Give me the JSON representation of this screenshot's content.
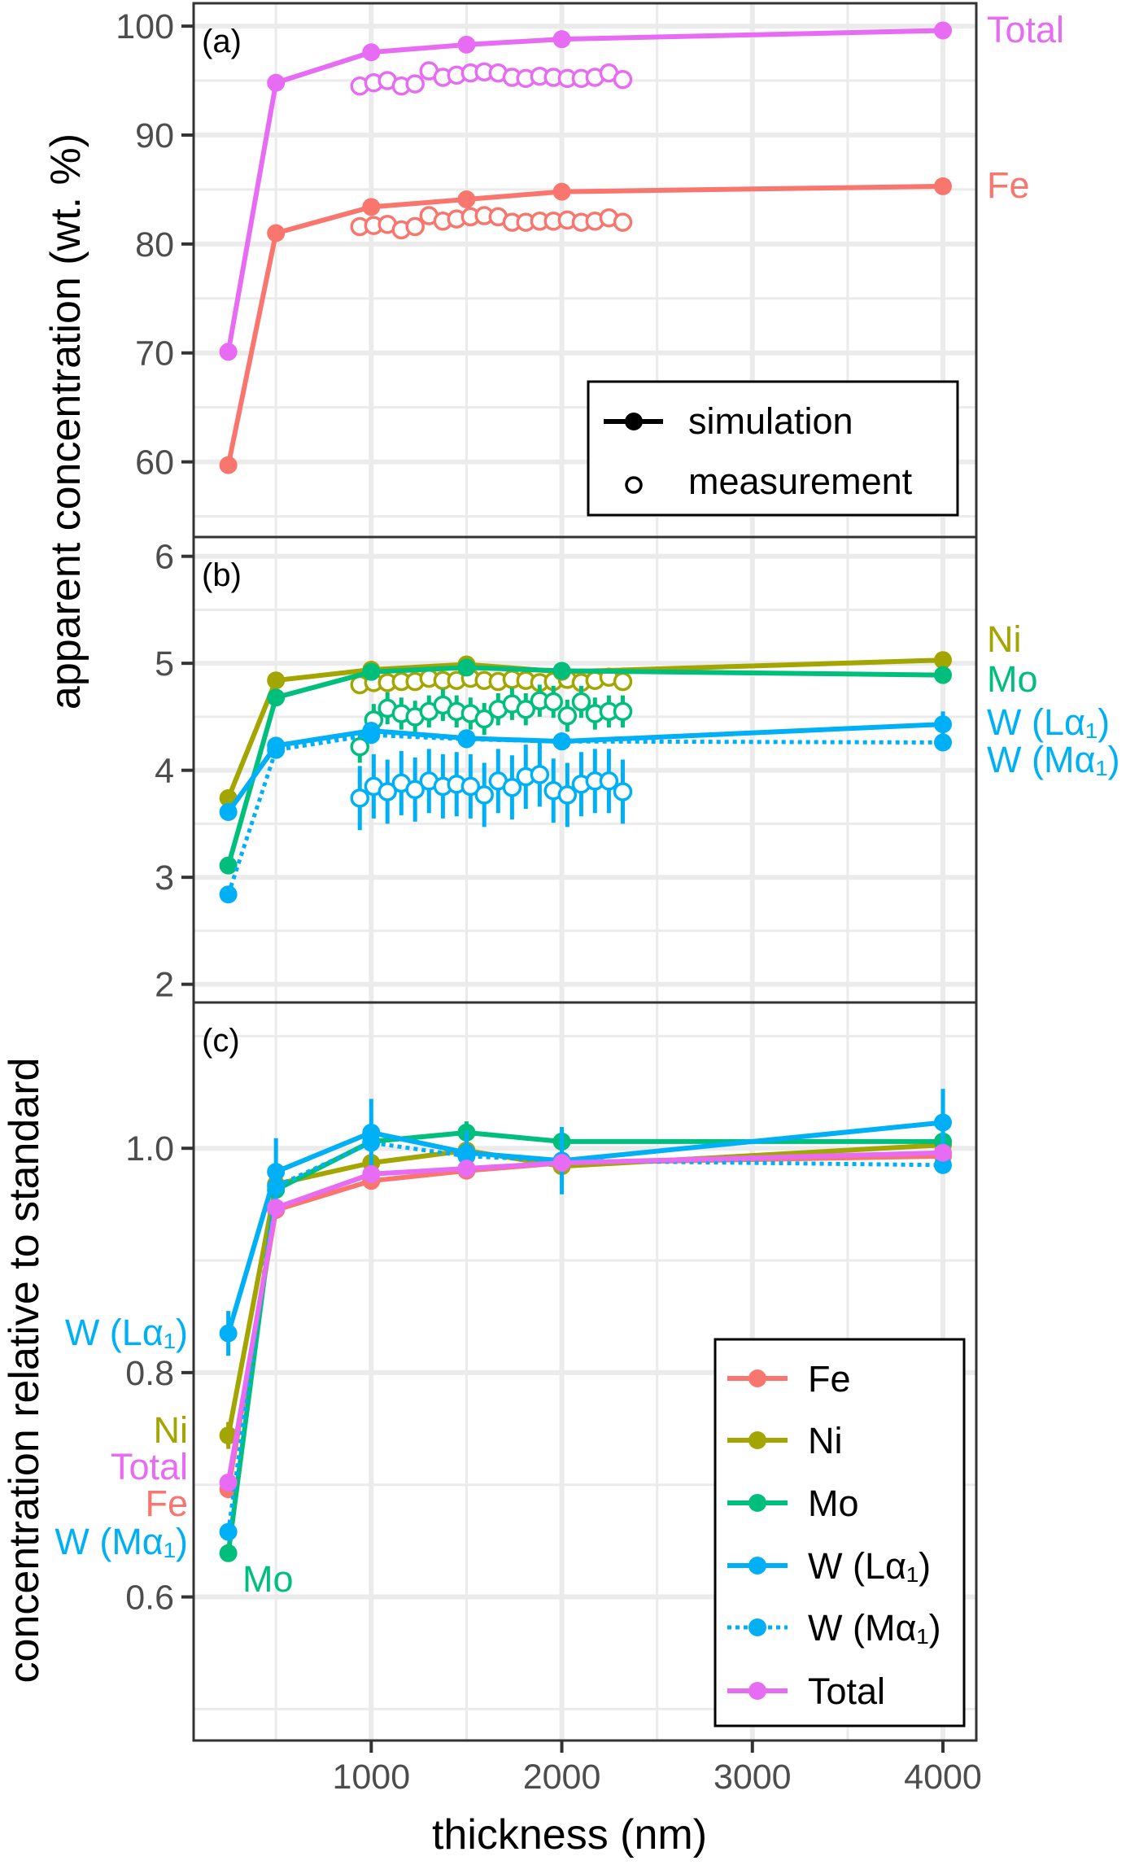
{
  "chart_data": [
    {
      "type": "line",
      "panel_label": "(a)",
      "ylabel": "apparent concentration (wt. %)",
      "xlim": [
        68,
        4175
      ],
      "ylim": [
        53.1,
        102.1
      ],
      "yticks": [
        60,
        70,
        80,
        90,
        100
      ],
      "yminor": [
        55,
        65,
        75,
        85,
        95
      ],
      "grid": true,
      "series": [
        {
          "name": "Total",
          "color": "#E76BF3",
          "style": "solid",
          "sim_x": [
            250,
            500,
            1000,
            1500,
            2000,
            4000
          ],
          "sim_y": [
            70.1,
            94.8,
            97.6,
            98.3,
            98.8,
            99.6
          ],
          "meas_y": [
            94.5,
            94.8,
            95.0,
            94.5,
            94.7,
            95.9,
            95.3,
            95.5,
            95.7,
            95.8,
            95.7,
            95.3,
            95.2,
            95.4,
            95.3,
            95.2,
            95.2,
            95.3,
            95.7,
            95.1
          ],
          "meas_err": 0.8
        },
        {
          "name": "Fe",
          "color": "#F8766D",
          "style": "solid",
          "sim_x": [
            250,
            500,
            1000,
            1500,
            2000,
            4000
          ],
          "sim_y": [
            59.7,
            81.0,
            83.4,
            84.1,
            84.8,
            85.3
          ],
          "meas_y": [
            81.6,
            81.7,
            81.8,
            81.3,
            81.6,
            82.6,
            82.1,
            82.3,
            82.5,
            82.6,
            82.5,
            82.0,
            82.0,
            82.1,
            82.1,
            82.2,
            82.0,
            82.1,
            82.4,
            82.0
          ],
          "meas_err": 0.3
        }
      ],
      "legend": {
        "placement": "bottom-right",
        "items": [
          "simulation",
          "measurement"
        ]
      }
    },
    {
      "type": "line",
      "panel_label": "(b)",
      "xlim": [
        68,
        4175
      ],
      "ylim": [
        1.83,
        6.18
      ],
      "yticks": [
        2,
        3,
        4,
        5,
        6
      ],
      "yminor": [
        2.5,
        3.5,
        4.5,
        5.5
      ],
      "grid": true,
      "series": [
        {
          "name": "Ni",
          "color": "#A3A500",
          "style": "solid",
          "sim_x": [
            250,
            500,
            1000,
            1500,
            2000,
            4000
          ],
          "sim_y": [
            3.74,
            4.84,
            4.94,
            4.99,
            4.92,
            5.03
          ],
          "meas_y": [
            4.8,
            4.82,
            4.82,
            4.83,
            4.83,
            4.86,
            4.84,
            4.84,
            4.86,
            4.84,
            4.83,
            4.85,
            4.84,
            4.82,
            4.83,
            4.85,
            4.82,
            4.84,
            4.87,
            4.83
          ],
          "meas_err": 0.05
        },
        {
          "name": "Mo",
          "color": "#00BF7D",
          "style": "solid",
          "sim_x": [
            250,
            500,
            1000,
            1500,
            2000,
            4000
          ],
          "sim_y": [
            3.11,
            4.68,
            4.92,
            4.96,
            4.93,
            4.89
          ],
          "meas_y": [
            4.22,
            4.47,
            4.58,
            4.53,
            4.5,
            4.55,
            4.61,
            4.55,
            4.53,
            4.48,
            4.57,
            4.62,
            4.57,
            4.65,
            4.64,
            4.51,
            4.64,
            4.53,
            4.55,
            4.55
          ],
          "meas_err": 0.15
        },
        {
          "name": "W (Lα₁)",
          "color": "#00B0F6",
          "style": "solid",
          "sim_x": [
            250,
            500,
            1000,
            1500,
            2000,
            4000
          ],
          "sim_y": [
            3.61,
            4.23,
            4.37,
            4.3,
            4.27,
            4.43
          ],
          "sim_err": [
            0,
            0.05,
            0.05,
            0.05,
            0.05,
            0.12
          ],
          "meas_y": [
            3.74,
            3.85,
            3.8,
            3.88,
            3.82,
            3.9,
            3.85,
            3.87,
            3.85,
            3.77,
            3.9,
            3.84,
            3.94,
            3.96,
            3.81,
            3.77,
            3.87,
            3.9,
            3.9,
            3.8
          ],
          "meas_err": 0.3
        },
        {
          "name": "W (Mα₁)",
          "color": "#00B0F6",
          "style": "dotted",
          "sim_x": [
            250,
            500,
            1000,
            1500,
            2000,
            4000
          ],
          "sim_y": [
            2.84,
            4.19,
            4.33,
            4.29,
            4.27,
            4.26
          ]
        }
      ]
    },
    {
      "type": "line",
      "panel_label": "(c)",
      "ylabel": "concentration relative to standard",
      "xlabel": "thickness (nm)",
      "xlim": [
        68,
        4175
      ],
      "ylim": [
        0.472,
        1.13
      ],
      "yticks": [
        0.6,
        0.8,
        1.0
      ],
      "ytick_labels": [
        "0.6",
        "0.8",
        "1.0"
      ],
      "yminor": [
        0.5,
        0.7,
        0.9,
        1.1
      ],
      "xticks": [
        1000,
        2000,
        3000,
        4000
      ],
      "xminor": [
        500,
        1500,
        2500,
        3500
      ],
      "grid": true,
      "x": [
        250,
        500,
        1000,
        1500,
        2000,
        4000
      ],
      "series": [
        {
          "name": "Fe",
          "color": "#F8766D",
          "style": "solid",
          "values": [
            0.696,
            0.945,
            0.971,
            0.98,
            0.987,
            0.993
          ],
          "err": [
            0,
            0,
            0,
            0,
            0,
            0
          ]
        },
        {
          "name": "Ni",
          "color": "#A3A500",
          "style": "solid",
          "values": [
            0.744,
            0.968,
            0.987,
            0.998,
            0.984,
            1.003
          ],
          "err": [
            0.012,
            0,
            0,
            0,
            0,
            0
          ]
        },
        {
          "name": "Mo",
          "color": "#00BF7D",
          "style": "solid",
          "values": [
            0.639,
            0.963,
            1.006,
            1.014,
            1.006,
            1.006
          ],
          "err": [
            0,
            0,
            0,
            0.01,
            0.01,
            0
          ]
        },
        {
          "name": "W (Lα₁)",
          "color": "#00B0F6",
          "style": "solid",
          "values": [
            0.835,
            0.979,
            1.014,
            0.996,
            0.989,
            1.023
          ],
          "err": [
            0.02,
            0.03,
            0.03,
            0.02,
            0.03,
            0.03
          ]
        },
        {
          "name": "W (Mα₁)",
          "color": "#00B0F6",
          "style": "dotted",
          "values": [
            0.658,
            0.966,
            1.005,
            0.993,
            0.989,
            0.985
          ],
          "err": [
            0,
            0,
            0,
            0,
            0,
            0.005
          ]
        },
        {
          "name": "Total",
          "color": "#E76BF3",
          "style": "solid",
          "values": [
            0.702,
            0.947,
            0.977,
            0.982,
            0.987,
            0.996
          ],
          "err": [
            0,
            0,
            0,
            0,
            0,
            0
          ]
        }
      ],
      "legend": {
        "placement": "bottom-right"
      }
    }
  ],
  "measurement_x": [
    940,
    1013,
    1085,
    1158,
    1230,
    1303,
    1376,
    1448,
    1521,
    1593,
    1666,
    1739,
    1811,
    1884,
    1956,
    2029,
    2102,
    2174,
    2247,
    2320
  ],
  "xtick_labels": [
    "1000",
    "2000",
    "3000",
    "4000"
  ],
  "ab_ylabel": "apparent concentration (wt. %)",
  "c_ylabel": "concentration relative to standard",
  "xlabel": "thickness (nm)",
  "legend_a": {
    "simulation": "simulation",
    "measurement": "measurement"
  },
  "right_labels_a": [
    "Total",
    "Fe"
  ],
  "right_labels_b": [
    "Ni",
    "Mo",
    "W (Lα₁)",
    "W (Mα₁)"
  ],
  "left_labels_c": [
    "W (Lα₁)",
    "Ni",
    "Total",
    "Fe",
    "W (Mα₁)",
    "Mo"
  ]
}
